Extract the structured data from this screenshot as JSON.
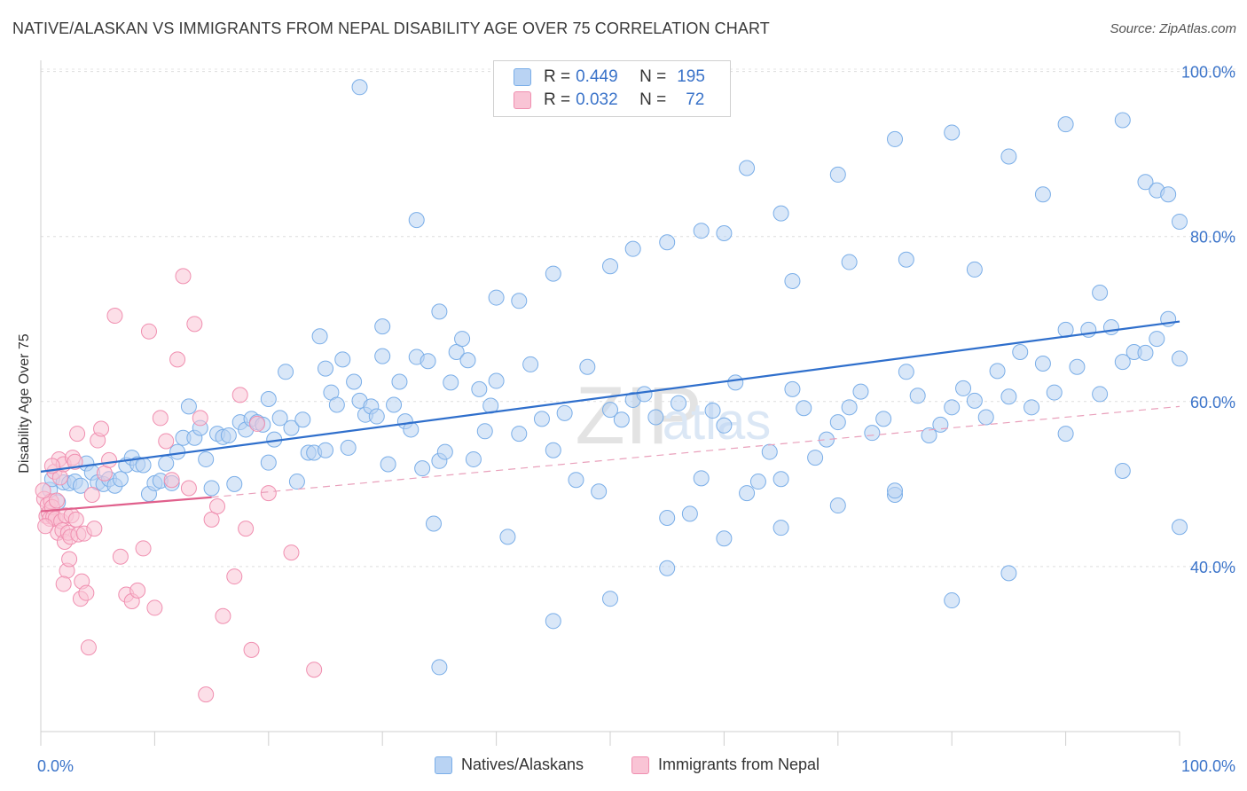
{
  "title": "NATIVE/ALASKAN VS IMMIGRANTS FROM NEPAL DISABILITY AGE OVER 75 CORRELATION CHART",
  "source": "Source: ZipAtlas.com",
  "legend": {
    "r_label": "R =",
    "n_label": "N =",
    "series1": {
      "r": "0.449",
      "n": "195"
    },
    "series2": {
      "r": "0.032",
      "n": "72"
    }
  },
  "chart_data": {
    "type": "scatter",
    "ylabel": "Disability Age Over 75",
    "xlim": [
      0,
      100
    ],
    "ylim": [
      20,
      102
    ],
    "x_tick_labels": [
      "0.0%",
      "100.0%"
    ],
    "y_ticks": [
      40,
      60,
      80,
      100
    ],
    "y_tick_labels": [
      "40.0%",
      "60.0%",
      "80.0%",
      "100.0%"
    ],
    "grid": true,
    "legend_position": "top-center",
    "watermark": "ZIPatlas",
    "series": [
      {
        "name": "Natives/Alaskans",
        "color": "#7aaee8",
        "fill": "#b9d3f3",
        "trend": {
          "x": [
            0,
            100
          ],
          "y": [
            51.5,
            69.7
          ],
          "style": "solid",
          "color": "#2f6fcc"
        },
        "points": [
          [
            0.8,
            49.3
          ],
          [
            1,
            50.6
          ],
          [
            1.5,
            47.8
          ],
          [
            2,
            50.2
          ],
          [
            2.5,
            50.1
          ],
          [
            3,
            50.3
          ],
          [
            3.5,
            49.8
          ],
          [
            4,
            52.5
          ],
          [
            4.5,
            51.4
          ],
          [
            5,
            50.2
          ],
          [
            5.5,
            50
          ],
          [
            6,
            50.6
          ],
          [
            6.5,
            49.8
          ],
          [
            7,
            50.6
          ],
          [
            7.5,
            52.3
          ],
          [
            8,
            53.2
          ],
          [
            8.5,
            52.4
          ],
          [
            9,
            52.3
          ],
          [
            9.5,
            48.8
          ],
          [
            10,
            50.1
          ],
          [
            10.5,
            50.4
          ],
          [
            11,
            52.5
          ],
          [
            11.5,
            50.1
          ],
          [
            12,
            53.9
          ],
          [
            12.5,
            55.6
          ],
          [
            13,
            59.4
          ],
          [
            13.5,
            55.6
          ],
          [
            14,
            56.8
          ],
          [
            14.5,
            53
          ],
          [
            15,
            49.5
          ],
          [
            15.5,
            56.1
          ],
          [
            16,
            55.7
          ],
          [
            16.5,
            55.9
          ],
          [
            17,
            50
          ],
          [
            17.5,
            57.5
          ],
          [
            18,
            56.6
          ],
          [
            18.5,
            57.9
          ],
          [
            19,
            57.5
          ],
          [
            19.5,
            57.2
          ],
          [
            20,
            52.6
          ],
          [
            20.5,
            55.4
          ],
          [
            21,
            58
          ],
          [
            21.5,
            63.6
          ],
          [
            22,
            56.8
          ],
          [
            22.5,
            50.3
          ],
          [
            23,
            57.8
          ],
          [
            23.5,
            53.8
          ],
          [
            24,
            53.8
          ],
          [
            24.5,
            67.9
          ],
          [
            25,
            54.1
          ],
          [
            25.5,
            61.1
          ],
          [
            26,
            59.6
          ],
          [
            26.5,
            65.1
          ],
          [
            27,
            54.4
          ],
          [
            27.5,
            62.4
          ],
          [
            28,
            60.1
          ],
          [
            28.5,
            58.4
          ],
          [
            29,
            59.4
          ],
          [
            29.5,
            58.2
          ],
          [
            30,
            65.5
          ],
          [
            30.5,
            52.4
          ],
          [
            31,
            59.6
          ],
          [
            31.5,
            62.4
          ],
          [
            32,
            57.6
          ],
          [
            32.5,
            56.6
          ],
          [
            33,
            65.4
          ],
          [
            33.5,
            51.9
          ],
          [
            34,
            64.9
          ],
          [
            34.5,
            45.2
          ],
          [
            35,
            52.8
          ],
          [
            35.5,
            53.9
          ],
          [
            36,
            62.3
          ],
          [
            36.5,
            66
          ],
          [
            37,
            67.6
          ],
          [
            37.5,
            65
          ],
          [
            38,
            53
          ],
          [
            38.5,
            61.5
          ],
          [
            39,
            56.4
          ],
          [
            39.5,
            59.5
          ],
          [
            40,
            62.5
          ],
          [
            41,
            43.6
          ],
          [
            42,
            56.1
          ],
          [
            43,
            64.5
          ],
          [
            44,
            57.9
          ],
          [
            45,
            54.1
          ],
          [
            46,
            58.6
          ],
          [
            47,
            50.5
          ],
          [
            48,
            64.2
          ],
          [
            49,
            49.1
          ],
          [
            50,
            59
          ],
          [
            51,
            57.8
          ],
          [
            52,
            60.2
          ],
          [
            53,
            60.9
          ],
          [
            54,
            58.1
          ],
          [
            55,
            45.9
          ],
          [
            56,
            59.8
          ],
          [
            57,
            46.4
          ],
          [
            58,
            50.7
          ],
          [
            59,
            58.9
          ],
          [
            60,
            57.1
          ],
          [
            61,
            62.3
          ],
          [
            62,
            48.9
          ],
          [
            63,
            50.3
          ],
          [
            64,
            53.9
          ],
          [
            65,
            50.6
          ],
          [
            66,
            61.5
          ],
          [
            67,
            59.2
          ],
          [
            68,
            53.2
          ],
          [
            69,
            55.4
          ],
          [
            70,
            57.5
          ],
          [
            71,
            59.3
          ],
          [
            72,
            61.2
          ],
          [
            73,
            56.2
          ],
          [
            74,
            57.9
          ],
          [
            75,
            48.7
          ],
          [
            76,
            63.6
          ],
          [
            77,
            60.7
          ],
          [
            78,
            55.9
          ],
          [
            79,
            57.2
          ],
          [
            80,
            59.3
          ],
          [
            81,
            61.6
          ],
          [
            82,
            60.1
          ],
          [
            83,
            58.1
          ],
          [
            84,
            63.7
          ],
          [
            85,
            60.6
          ],
          [
            86,
            66
          ],
          [
            87,
            59.3
          ],
          [
            88,
            64.6
          ],
          [
            89,
            61.1
          ],
          [
            90,
            68.7
          ],
          [
            91,
            64.2
          ],
          [
            92,
            68.7
          ],
          [
            93,
            60.9
          ],
          [
            94,
            69
          ],
          [
            95,
            64.8
          ],
          [
            96,
            66
          ],
          [
            97,
            65.9
          ],
          [
            98,
            67.6
          ],
          [
            99,
            70
          ],
          [
            100,
            65.2
          ],
          [
            35,
            27.8
          ],
          [
            45,
            33.4
          ],
          [
            50,
            36.1
          ],
          [
            55,
            39.8
          ],
          [
            60,
            43.4
          ],
          [
            65,
            44.7
          ],
          [
            70,
            47.4
          ],
          [
            75,
            49.2
          ],
          [
            80,
            35.9
          ],
          [
            85,
            39.2
          ],
          [
            90,
            56.1
          ],
          [
            95,
            51.6
          ],
          [
            20,
            60.3
          ],
          [
            25,
            64
          ],
          [
            30,
            69.1
          ],
          [
            35,
            70.9
          ],
          [
            40,
            72.6
          ],
          [
            45,
            75.5
          ],
          [
            50,
            76.4
          ],
          [
            55,
            79.3
          ],
          [
            60,
            80.4
          ],
          [
            65,
            82.8
          ],
          [
            70,
            87.5
          ],
          [
            75,
            91.8
          ],
          [
            80,
            92.6
          ],
          [
            85,
            89.7
          ],
          [
            90,
            93.6
          ],
          [
            95,
            94.1
          ],
          [
            97,
            86.6
          ],
          [
            98,
            85.6
          ],
          [
            99,
            85.1
          ],
          [
            100,
            81.8
          ],
          [
            28,
            98.1
          ],
          [
            33,
            82
          ],
          [
            42,
            72.2
          ],
          [
            52,
            78.5
          ],
          [
            58,
            80.7
          ],
          [
            62,
            88.3
          ],
          [
            66,
            74.6
          ],
          [
            71,
            76.9
          ],
          [
            76,
            77.2
          ],
          [
            82,
            76
          ],
          [
            88,
            85.1
          ],
          [
            93,
            73.2
          ],
          [
            100,
            44.8
          ]
        ]
      },
      {
        "name": "Immigrants from Nepal",
        "color": "#f08fb0",
        "fill": "#f9c4d5",
        "trend": {
          "x": [
            0,
            15
          ],
          "y": [
            46.7,
            48.4
          ],
          "style": "solid",
          "color": "#e0608c"
        },
        "trend_ext": {
          "x": [
            15,
            100
          ],
          "y": [
            48.4,
            59.4
          ],
          "style": "dashed",
          "color": "#e9a0bb"
        },
        "points": [
          [
            0.3,
            48.2
          ],
          [
            0.5,
            46.1
          ],
          [
            0.6,
            47.5
          ],
          [
            0.7,
            46.5
          ],
          [
            0.8,
            45.8
          ],
          [
            0.9,
            47.9
          ],
          [
            1,
            47.2
          ],
          [
            1.1,
            46
          ],
          [
            1.2,
            51.5
          ],
          [
            1.3,
            45.8
          ],
          [
            1.4,
            48
          ],
          [
            1.5,
            44.1
          ],
          [
            1.6,
            53
          ],
          [
            1.7,
            50.8
          ],
          [
            1.8,
            45.5
          ],
          [
            1.9,
            44.4
          ],
          [
            2,
            52.4
          ],
          [
            2.1,
            43
          ],
          [
            2.2,
            46.2
          ],
          [
            2.3,
            39.5
          ],
          [
            2.4,
            44.1
          ],
          [
            2.5,
            40.9
          ],
          [
            2.6,
            43.6
          ],
          [
            2.7,
            46.2
          ],
          [
            2.8,
            53.2
          ],
          [
            3,
            52.7
          ],
          [
            3.1,
            45.7
          ],
          [
            3.2,
            56.1
          ],
          [
            3.3,
            43.9
          ],
          [
            3.5,
            36.1
          ],
          [
            3.6,
            38.2
          ],
          [
            3.8,
            44
          ],
          [
            4,
            36.8
          ],
          [
            4.2,
            30.2
          ],
          [
            4.5,
            48.7
          ],
          [
            4.7,
            44.6
          ],
          [
            5,
            55.3
          ],
          [
            5.3,
            56.7
          ],
          [
            5.6,
            51.3
          ],
          [
            6,
            52.9
          ],
          [
            6.5,
            70.4
          ],
          [
            7,
            41.2
          ],
          [
            7.5,
            36.6
          ],
          [
            8,
            35.8
          ],
          [
            8.5,
            37.1
          ],
          [
            9,
            42.2
          ],
          [
            9.5,
            68.5
          ],
          [
            10,
            35
          ],
          [
            10.5,
            58
          ],
          [
            11,
            55.2
          ],
          [
            11.5,
            50.5
          ],
          [
            12,
            65.1
          ],
          [
            12.5,
            75.2
          ],
          [
            13,
            49.5
          ],
          [
            13.5,
            69.4
          ],
          [
            14,
            58
          ],
          [
            14.5,
            24.5
          ],
          [
            15,
            45.7
          ],
          [
            15.5,
            47.3
          ],
          [
            16,
            34
          ],
          [
            17,
            38.8
          ],
          [
            17.5,
            60.8
          ],
          [
            18,
            44.6
          ],
          [
            18.5,
            29.9
          ],
          [
            19,
            57.3
          ],
          [
            20,
            48.9
          ],
          [
            22,
            41.7
          ],
          [
            24,
            27.5
          ],
          [
            0.2,
            49.2
          ],
          [
            0.4,
            44.9
          ],
          [
            1,
            52.2
          ],
          [
            2,
            37.9
          ]
        ]
      }
    ]
  },
  "bottom_legend": [
    {
      "label": "Natives/Alaskans"
    },
    {
      "label": "Immigrants from Nepal"
    }
  ]
}
